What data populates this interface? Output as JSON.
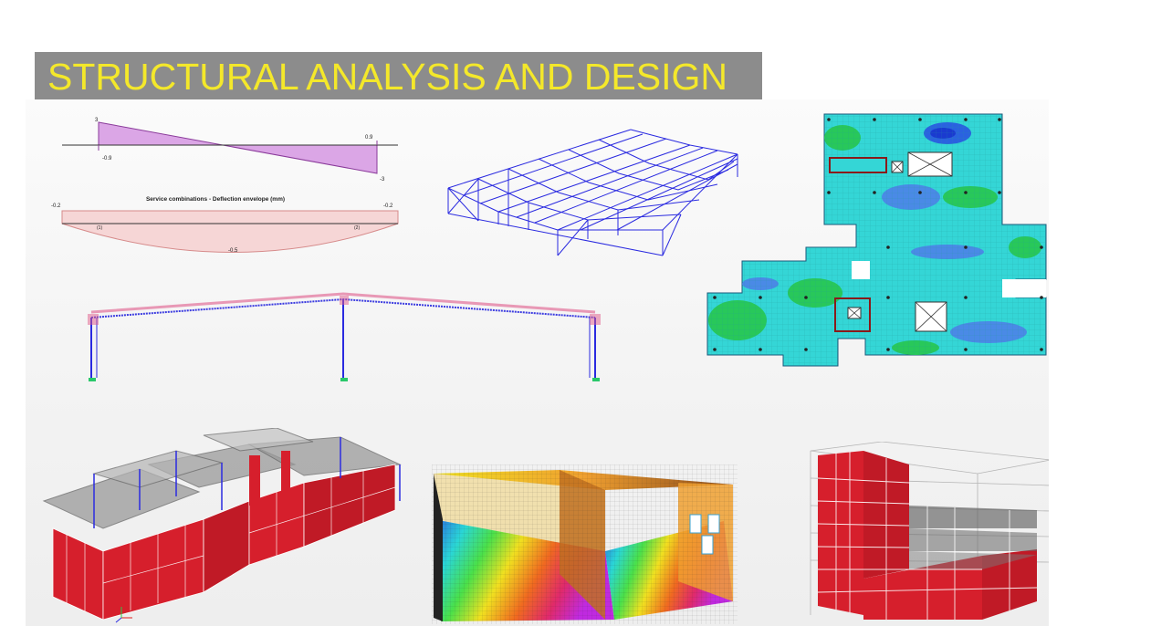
{
  "banner": {
    "title": "STRUCTURAL ANALYSIS AND DESIGN",
    "background_color": "#8c8c8c",
    "text_color": "#f4e82a"
  },
  "diagrams": {
    "shear": {
      "top_left_value": "3",
      "left_value": "-0.9",
      "right_top_value": "0.9",
      "right_bottom_value": "-3"
    },
    "deflection": {
      "title": "Service combinations - Deflection envelope (mm)",
      "left_value": "-0.2",
      "right_value": "-0.2",
      "mid_value": "-0.5",
      "support_left": "(1)",
      "support_right": "(2)"
    }
  },
  "colors": {
    "shear_fill": "#dba6e6",
    "deflection_fill": "#f6d6d6",
    "wireframe": "#2a2ae0",
    "wall_red": "#d61f2c",
    "slab_grey": "#9a9a9a",
    "contour_cyan": "#34d6d6",
    "contour_green": "#28c85a",
    "contour_blue": "#2a62e0"
  }
}
